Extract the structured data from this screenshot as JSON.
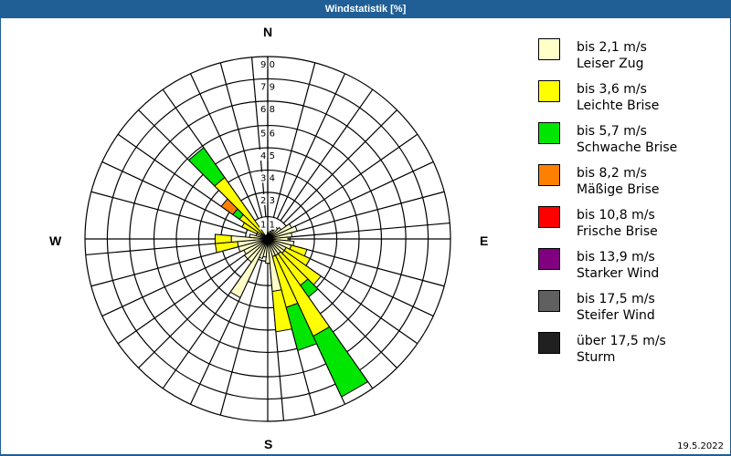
{
  "header": {
    "title": "Windstatistik [%]"
  },
  "compass": {
    "n": "N",
    "e": "E",
    "s": "S",
    "w": "W"
  },
  "footer": {
    "date": "19.5.2022"
  },
  "legend": [
    {
      "range": "bis 2,1 m/s",
      "name": "Leiser Zug",
      "color": "#ffffc8"
    },
    {
      "range": "bis 3,6 m/s",
      "name": "Leichte Brise",
      "color": "#ffff00"
    },
    {
      "range": "bis 5,7 m/s",
      "name": "Schwache Brise",
      "color": "#00e600"
    },
    {
      "range": "bis 8,2 m/s",
      "name": "Mäßige Brise",
      "color": "#ff8000"
    },
    {
      "range": "bis 10,8 m/s",
      "name": "Frische Brise",
      "color": "#ff0000"
    },
    {
      "range": "bis 13,9 m/s",
      "name": "Starker Wind",
      "color": "#800080"
    },
    {
      "range": "bis 17,5 m/s",
      "name": "Steifer Wind",
      "color": "#606060"
    },
    {
      "range": "über 17,5 m/s",
      "name": "Sturm",
      "color": "#202020"
    }
  ],
  "chart_data": {
    "type": "polar-stacked-bar",
    "title": "Windstatistik [%]",
    "rmax": 9.0,
    "ring_ticks": [
      1.1,
      2.3,
      3.4,
      4.5,
      5.6,
      6.8,
      7.9,
      9.0
    ],
    "ring_labels": [
      "1,1",
      "2,3",
      "3,4",
      "4,5",
      "5,6",
      "6,8",
      "7,9",
      "9,0"
    ],
    "sector_width_deg": 10,
    "series_names": [
      "Leiser Zug",
      "Leichte Brise",
      "Schwache Brise",
      "Mäßige Brise",
      "Frische Brise",
      "Starker Wind",
      "Steifer Wind",
      "Sturm"
    ],
    "sectors": [
      {
        "dir": 0,
        "values": [
          0.3,
          0,
          0,
          0,
          0,
          0,
          0,
          0
        ]
      },
      {
        "dir": 10,
        "values": [
          0.3,
          0,
          0,
          0,
          0,
          0,
          0,
          0
        ]
      },
      {
        "dir": 20,
        "values": [
          0.4,
          0,
          0,
          0,
          0,
          0,
          0,
          0
        ]
      },
      {
        "dir": 30,
        "values": [
          0.5,
          0,
          0,
          0,
          0,
          0,
          0,
          0
        ]
      },
      {
        "dir": 40,
        "values": [
          0.7,
          0,
          0,
          0,
          0,
          0,
          0,
          0
        ]
      },
      {
        "dir": 50,
        "values": [
          0.8,
          0,
          0,
          0,
          0,
          0,
          0,
          0
        ]
      },
      {
        "dir": 60,
        "values": [
          1.3,
          0,
          0,
          0,
          0,
          0,
          0,
          0
        ]
      },
      {
        "dir": 70,
        "values": [
          1.5,
          0,
          0,
          0,
          0,
          0,
          0,
          0
        ]
      },
      {
        "dir": 80,
        "values": [
          1.2,
          0,
          0,
          0,
          0,
          0,
          0,
          0
        ]
      },
      {
        "dir": 90,
        "values": [
          1.0,
          0,
          0,
          0,
          0,
          0,
          0,
          0
        ]
      },
      {
        "dir": 100,
        "values": [
          1.3,
          0,
          0,
          0,
          0,
          0,
          0,
          0
        ]
      },
      {
        "dir": 110,
        "values": [
          1.2,
          0.8,
          0,
          0,
          0,
          0,
          0,
          0
        ]
      },
      {
        "dir": 120,
        "values": [
          1.0,
          1.3,
          0,
          0,
          0,
          0,
          0,
          0
        ]
      },
      {
        "dir": 130,
        "values": [
          1.0,
          2.2,
          0,
          0,
          0,
          0,
          0,
          0
        ]
      },
      {
        "dir": 140,
        "values": [
          0.9,
          1.9,
          0.7,
          0,
          0,
          0,
          0,
          0
        ]
      },
      {
        "dir": 150,
        "values": [
          0.9,
          4.4,
          3.3,
          0,
          0,
          0,
          0,
          0
        ]
      },
      {
        "dir": 160,
        "values": [
          0.9,
          2.6,
          2.2,
          0,
          0,
          0,
          0,
          0
        ]
      },
      {
        "dir": 170,
        "values": [
          2.6,
          2.0,
          0,
          0,
          0,
          0,
          0,
          0
        ]
      },
      {
        "dir": 180,
        "values": [
          1.2,
          0,
          0,
          0,
          0,
          0,
          0,
          0
        ]
      },
      {
        "dir": 190,
        "values": [
          0.9,
          0,
          0,
          0,
          0,
          0,
          0,
          0
        ]
      },
      {
        "dir": 200,
        "values": [
          1.0,
          0,
          0,
          0,
          0,
          0,
          0,
          0
        ]
      },
      {
        "dir": 210,
        "values": [
          3.2,
          0,
          0,
          0,
          0,
          0,
          0,
          0
        ]
      },
      {
        "dir": 220,
        "values": [
          1.4,
          0,
          0,
          0,
          0,
          0,
          0,
          0
        ]
      },
      {
        "dir": 230,
        "values": [
          1.4,
          0,
          0,
          0,
          0,
          0,
          0,
          0
        ]
      },
      {
        "dir": 240,
        "values": [
          1.3,
          0,
          0,
          0,
          0,
          0,
          0,
          0
        ]
      },
      {
        "dir": 250,
        "values": [
          1.5,
          0,
          0,
          0,
          0,
          0,
          0,
          0
        ]
      },
      {
        "dir": 260,
        "values": [
          1.5,
          1.1,
          0,
          0,
          0,
          0,
          0,
          0
        ]
      },
      {
        "dir": 270,
        "values": [
          1.8,
          0.8,
          0,
          0,
          0,
          0,
          0,
          0
        ]
      },
      {
        "dir": 280,
        "values": [
          0.9,
          0,
          0,
          0,
          0,
          0,
          0,
          0
        ]
      },
      {
        "dir": 290,
        "values": [
          0.6,
          0,
          0,
          0,
          0,
          0,
          0,
          0
        ]
      },
      {
        "dir": 300,
        "values": [
          0.6,
          0.8,
          0,
          0,
          0,
          0,
          0,
          0
        ]
      },
      {
        "dir": 310,
        "values": [
          0.4,
          1.3,
          0.4,
          0.7,
          0,
          0,
          0,
          0
        ]
      },
      {
        "dir": 320,
        "values": [
          0.2,
          3.5,
          1.8,
          0,
          0,
          0,
          0,
          0
        ]
      },
      {
        "dir": 330,
        "values": [
          0.2,
          0,
          0,
          0,
          0,
          0,
          0,
          0
        ]
      },
      {
        "dir": 340,
        "values": [
          0.2,
          0,
          0,
          0,
          0,
          0,
          0,
          0
        ]
      },
      {
        "dir": 350,
        "values": [
          0.2,
          0,
          0,
          0,
          0,
          0,
          0,
          0
        ]
      }
    ]
  }
}
